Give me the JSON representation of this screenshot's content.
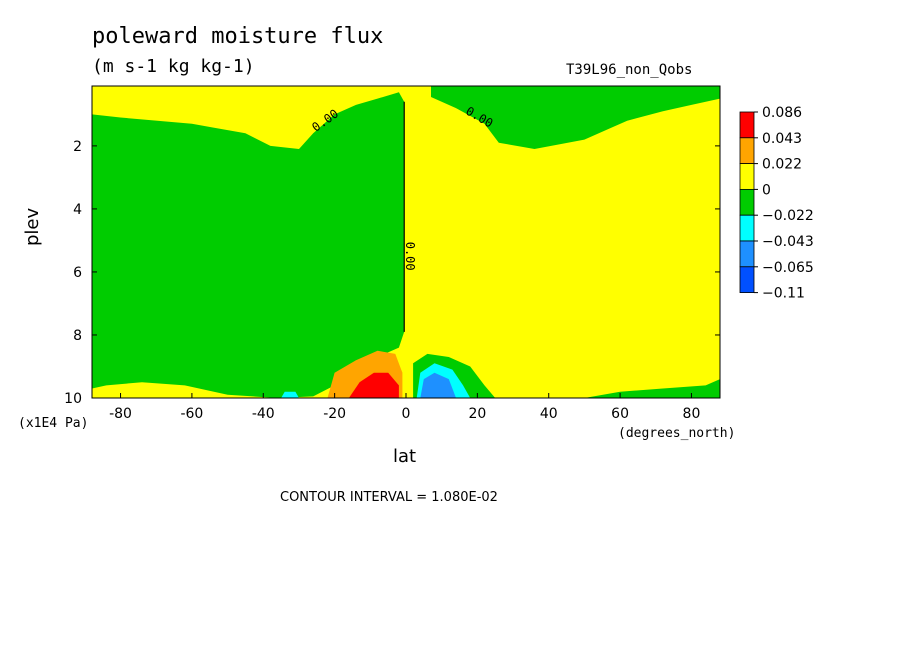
{
  "chart_data": {
    "type": "heatmap",
    "title": "poleward moisture flux",
    "units": "(m s-1 kg kg-1)",
    "run_label": "T39L96_non_Qobs",
    "xlabel": "lat",
    "ylabel": "plev",
    "x_unit_label": "(degrees_north)",
    "y_unit_label": "(x1E4 Pa)",
    "contour_interval_text": "CONTOUR INTERVAL = 1.080E-02",
    "xlim": [
      -88,
      88
    ],
    "ylim": [
      10,
      0.1
    ],
    "x_ticks": [
      -80,
      -60,
      -40,
      -20,
      0,
      20,
      40,
      60,
      80
    ],
    "y_ticks": [
      2,
      4,
      6,
      8,
      10
    ],
    "contour_labels": [
      {
        "text": "0.00",
        "lat": -22,
        "plev": 1.3,
        "angle": -35
      },
      {
        "text": "0.00",
        "lat": 20,
        "plev": 1.2,
        "angle": 30
      },
      {
        "text": "0.00",
        "lat": 0,
        "plev": 5.5,
        "angle": 90
      }
    ],
    "colorbar": {
      "levels": [
        "0.086",
        "0.043",
        "0.022",
        "0",
        "−0.022",
        "−0.043",
        "−0.065",
        "−0.11"
      ],
      "colors": [
        "#ff0000",
        "#ffa500",
        "#ffff00",
        "#00cc00",
        "#00ffff",
        "#1e90ff",
        "#0050ff"
      ]
    },
    "fields": {
      "positive_color": "#ffff00",
      "negative_color": "#00cc00",
      "strong_positive_color": "#ff0000",
      "moderate_positive_color": "#ffa500",
      "strong_negative_color": "#1e90ff",
      "moderate_negative_color": "#00ffff",
      "extreme_negative_color": "#0050ff"
    }
  }
}
